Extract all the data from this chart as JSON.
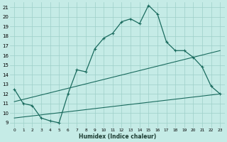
{
  "xlabel": "Humidex (Indice chaleur)",
  "bg_color": "#c5ebe6",
  "grid_color": "#9ecfc8",
  "line_color": "#1a6b5e",
  "xlim": [
    -0.5,
    23.5
  ],
  "ylim": [
    8.5,
    21.5
  ],
  "xticks": [
    0,
    1,
    2,
    3,
    4,
    5,
    6,
    7,
    8,
    9,
    10,
    11,
    12,
    13,
    14,
    15,
    16,
    17,
    18,
    19,
    20,
    21,
    22,
    23
  ],
  "yticks": [
    9,
    10,
    11,
    12,
    13,
    14,
    15,
    16,
    17,
    18,
    19,
    20,
    21
  ],
  "line1_x": [
    0,
    1,
    2,
    3,
    4,
    5,
    6,
    7,
    8,
    9,
    10,
    11,
    12,
    13,
    14,
    15,
    16,
    17,
    18,
    19,
    20,
    21,
    22,
    23
  ],
  "line1_y": [
    12.5,
    11.0,
    10.8,
    9.5,
    9.2,
    9.0,
    12.0,
    14.5,
    14.3,
    16.7,
    17.8,
    18.3,
    19.5,
    19.8,
    19.3,
    21.2,
    20.3,
    17.4,
    16.5,
    16.5,
    15.8,
    14.8,
    12.8,
    12.0
  ],
  "line2_x": [
    0,
    23
  ],
  "line2_y": [
    11.2,
    16.5
  ],
  "line3_x": [
    0,
    23
  ],
  "line3_y": [
    9.5,
    12.0
  ]
}
